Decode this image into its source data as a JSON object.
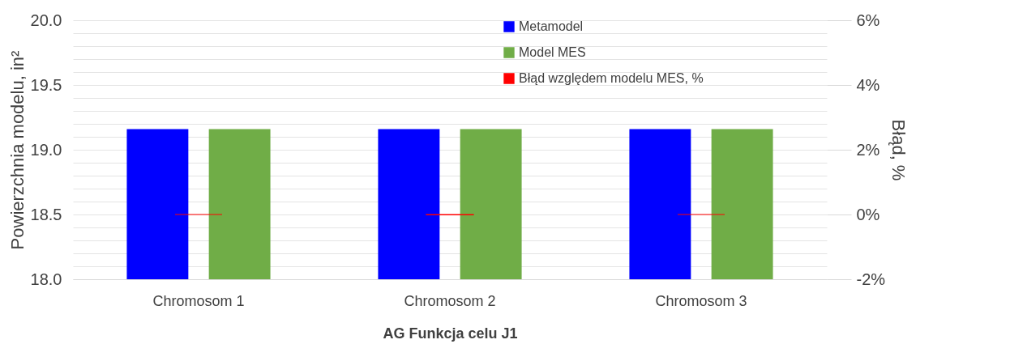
{
  "chart_data": {
    "type": "bar",
    "xlabel": "AG Funkcja celu J1",
    "ylabel": "Powierzchnia modelu, in²",
    "y2label": "Błąd, %",
    "categories": [
      "Chromosom 1",
      "Chromosom 2",
      "Chromosom 3"
    ],
    "series": [
      {
        "name": "Metamodel",
        "color": "#0000ff",
        "values": [
          19.16,
          19.16,
          19.16
        ]
      },
      {
        "name": "Model MES",
        "color": "#70ad47",
        "values": [
          19.16,
          19.16,
          19.16
        ]
      },
      {
        "name": "Błąd względem modelu MES, %",
        "color": "#ff0000",
        "type": "bar",
        "axis": "y2",
        "values": [
          0,
          -0.01,
          0
        ]
      }
    ],
    "ylim": [
      18.0,
      20.0
    ],
    "yticks": [
      {
        "value": 18.0,
        "label": "18.0"
      },
      {
        "value": 18.1,
        "label": null
      },
      {
        "value": 18.2,
        "label": null
      },
      {
        "value": 18.3,
        "label": null
      },
      {
        "value": 18.4,
        "label": null
      },
      {
        "value": 18.5,
        "label": "18.5"
      },
      {
        "value": 18.6,
        "label": null
      },
      {
        "value": 18.7,
        "label": null
      },
      {
        "value": 18.8,
        "label": null
      },
      {
        "value": 18.9,
        "label": null
      },
      {
        "value": 19.0,
        "label": "19.0"
      },
      {
        "value": 19.1,
        "label": null
      },
      {
        "value": 19.2,
        "label": null
      },
      {
        "value": 19.3,
        "label": null
      },
      {
        "value": 19.4,
        "label": null
      },
      {
        "value": 19.5,
        "label": "19.5"
      },
      {
        "value": 19.6,
        "label": null
      },
      {
        "value": 19.7,
        "label": null
      },
      {
        "value": 19.8,
        "label": null
      },
      {
        "value": 19.9,
        "label": null
      },
      {
        "value": 20.0,
        "label": "20.0"
      }
    ],
    "y2lim": [
      -2,
      6
    ],
    "y2ticks": [
      {
        "value": -2,
        "label": "-2%"
      },
      {
        "value": 0,
        "label": "0%"
      },
      {
        "value": 2,
        "label": "2%"
      },
      {
        "value": 4,
        "label": "4%"
      },
      {
        "value": 6,
        "label": "6%"
      }
    ],
    "grid": "y",
    "legend": "top right"
  }
}
